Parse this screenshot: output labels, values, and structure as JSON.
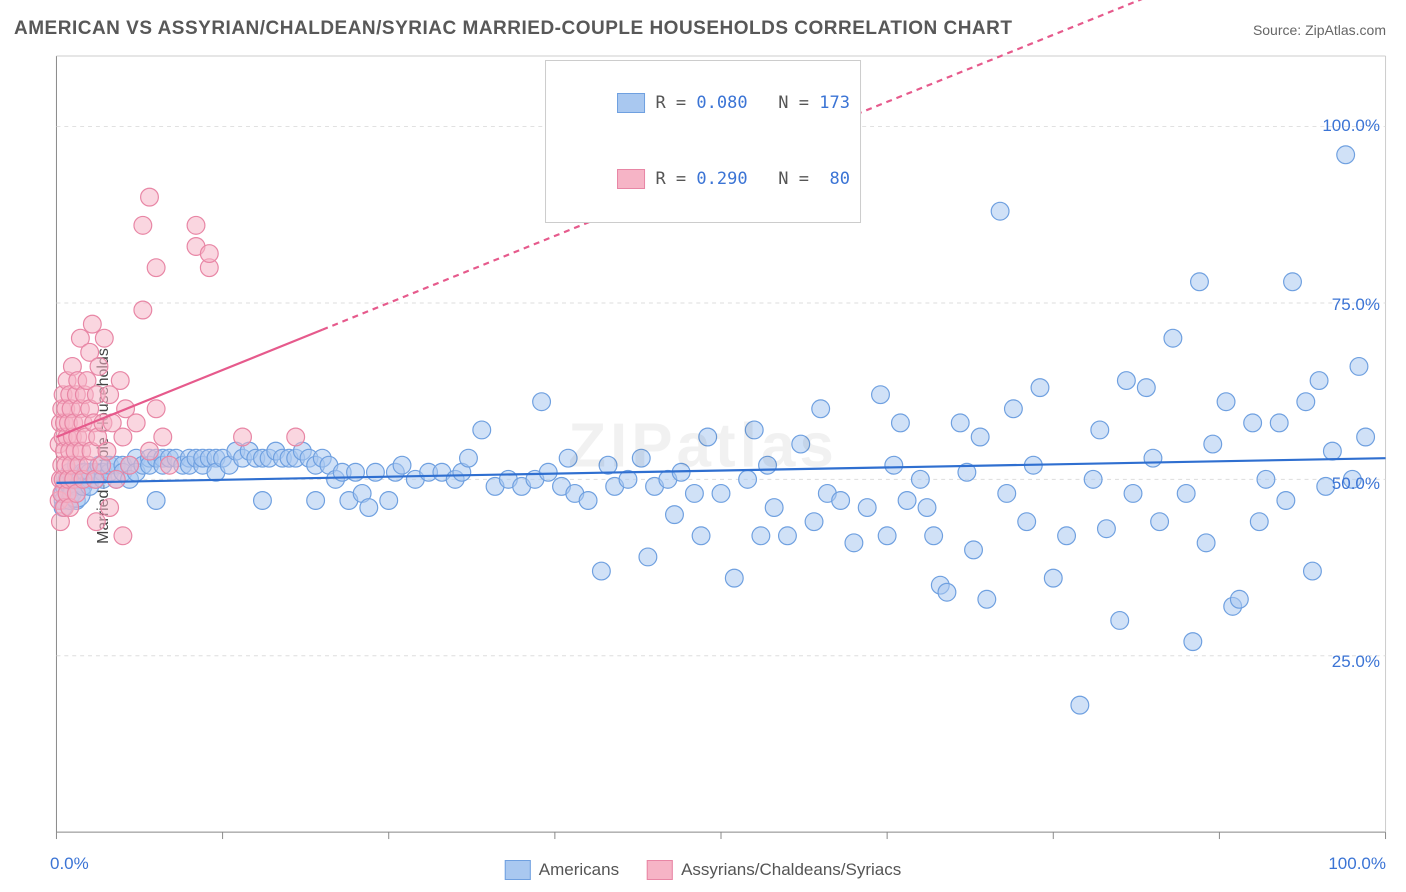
{
  "title": "AMERICAN VS ASSYRIAN/CHALDEAN/SYRIAC MARRIED-COUPLE HOUSEHOLDS CORRELATION CHART",
  "source_label": "Source: ZipAtlas.com",
  "watermark": "ZIPatlas",
  "ylabel": "Married-couple Households",
  "chart": {
    "type": "scatter",
    "xlim": [
      0,
      100
    ],
    "ylim": [
      0,
      110
    ],
    "xtick_positions": [
      0,
      12.5,
      25,
      37.5,
      50,
      62.5,
      75,
      87.5,
      100
    ],
    "ytick_positions": [
      25,
      50,
      75,
      100
    ],
    "ytick_labels": [
      "25.0%",
      "50.0%",
      "75.0%",
      "100.0%"
    ],
    "xaxis_min_label": "0.0%",
    "xaxis_max_label": "100.0%",
    "background_color": "#ffffff",
    "grid_color": "#dddddd",
    "grid_dash": "4 4",
    "ytick_label_color": "#3b74d5",
    "xtick_label_color": "#3b74d5",
    "ylabel_color": "#444444",
    "marker_radius": 9,
    "marker_radius_large": 14,
    "series": [
      {
        "name": "Americans",
        "fill_color": "#a9c8f0",
        "stroke_color": "#6fa0e0",
        "fill_opacity": 0.55,
        "line_color": "#2f6fd0",
        "line_width": 2.2,
        "line_dash": "none",
        "regression": {
          "y_at_x0": 49.5,
          "y_at_x100": 53.0
        },
        "points": [
          [
            0.5,
            48
          ],
          [
            0.5,
            50
          ],
          [
            0.5,
            47
          ],
          [
            0.5,
            46
          ],
          [
            0.6,
            49
          ],
          [
            0.8,
            48
          ],
          [
            0.8,
            50
          ],
          [
            1,
            49
          ],
          [
            1,
            51
          ],
          [
            1,
            47
          ],
          [
            1.2,
            50
          ],
          [
            1.2,
            48
          ],
          [
            1.5,
            50
          ],
          [
            1.5,
            49
          ],
          [
            1.5,
            47
          ],
          [
            1.5,
            52
          ],
          [
            1.5,
            48,
            14
          ],
          [
            1.8,
            50
          ],
          [
            2,
            50
          ],
          [
            2,
            51
          ],
          [
            2,
            49
          ],
          [
            2.2,
            51
          ],
          [
            2.5,
            50
          ],
          [
            2.5,
            51
          ],
          [
            2.5,
            49
          ],
          [
            3,
            51
          ],
          [
            3,
            50
          ],
          [
            3.2,
            52
          ],
          [
            3.5,
            51
          ],
          [
            3.5,
            50
          ],
          [
            4,
            51
          ],
          [
            4,
            52
          ],
          [
            4.5,
            52
          ],
          [
            4.5,
            50
          ],
          [
            5,
            52
          ],
          [
            5,
            51
          ],
          [
            5.5,
            52
          ],
          [
            5.5,
            50
          ],
          [
            6,
            53
          ],
          [
            6,
            51
          ],
          [
            6.5,
            52
          ],
          [
            7,
            53
          ],
          [
            7,
            52
          ],
          [
            7.5,
            53
          ],
          [
            7.5,
            47
          ],
          [
            8,
            53
          ],
          [
            8,
            52
          ],
          [
            8.5,
            53
          ],
          [
            9,
            53
          ],
          [
            9.5,
            52
          ],
          [
            10,
            53
          ],
          [
            10,
            52
          ],
          [
            10.5,
            53
          ],
          [
            11,
            52
          ],
          [
            11,
            53
          ],
          [
            11.5,
            53
          ],
          [
            12,
            53
          ],
          [
            12,
            51
          ],
          [
            12.5,
            53
          ],
          [
            13,
            52
          ],
          [
            13.5,
            54
          ],
          [
            14,
            53
          ],
          [
            14.5,
            54
          ],
          [
            15,
            53
          ],
          [
            15.5,
            53
          ],
          [
            15.5,
            47
          ],
          [
            16,
            53
          ],
          [
            16.5,
            54
          ],
          [
            17,
            53
          ],
          [
            17.5,
            53
          ],
          [
            18,
            53
          ],
          [
            18.5,
            54
          ],
          [
            19,
            53
          ],
          [
            19.5,
            47
          ],
          [
            19.5,
            52
          ],
          [
            20,
            53
          ],
          [
            20.5,
            52
          ],
          [
            21,
            50
          ],
          [
            21.5,
            51
          ],
          [
            22,
            47
          ],
          [
            22.5,
            51
          ],
          [
            23,
            48
          ],
          [
            23.5,
            46
          ],
          [
            24,
            51
          ],
          [
            25,
            47
          ],
          [
            25.5,
            51
          ],
          [
            26,
            52
          ],
          [
            27,
            50
          ],
          [
            28,
            51
          ],
          [
            29,
            51
          ],
          [
            30,
            50
          ],
          [
            30.5,
            51
          ],
          [
            31,
            53
          ],
          [
            32,
            57
          ],
          [
            33,
            49
          ],
          [
            34,
            50
          ],
          [
            35,
            49
          ],
          [
            36,
            50
          ],
          [
            36.5,
            61
          ],
          [
            37,
            51
          ],
          [
            38,
            49
          ],
          [
            38.5,
            53
          ],
          [
            39,
            48
          ],
          [
            40,
            47
          ],
          [
            41,
            37
          ],
          [
            41.5,
            52
          ],
          [
            42,
            49
          ],
          [
            43,
            50
          ],
          [
            44,
            53
          ],
          [
            44.5,
            39
          ],
          [
            45,
            49
          ],
          [
            46,
            50
          ],
          [
            46.5,
            45
          ],
          [
            47,
            51
          ],
          [
            48,
            48
          ],
          [
            48.5,
            42
          ],
          [
            49,
            56
          ],
          [
            50,
            48
          ],
          [
            51,
            36
          ],
          [
            52,
            50
          ],
          [
            52.5,
            57
          ],
          [
            53,
            42
          ],
          [
            53.5,
            52
          ],
          [
            54,
            46
          ],
          [
            55,
            42
          ],
          [
            56,
            55
          ],
          [
            57,
            44
          ],
          [
            57.5,
            60
          ],
          [
            58,
            48
          ],
          [
            59,
            47
          ],
          [
            60,
            41
          ],
          [
            61,
            46
          ],
          [
            62,
            62
          ],
          [
            62.5,
            42
          ],
          [
            63,
            52
          ],
          [
            63.5,
            58
          ],
          [
            64,
            47
          ],
          [
            65,
            50
          ],
          [
            65.5,
            46
          ],
          [
            66,
            42
          ],
          [
            66.5,
            35
          ],
          [
            67,
            34
          ],
          [
            68,
            58
          ],
          [
            68.5,
            51
          ],
          [
            69,
            40
          ],
          [
            69.5,
            56
          ],
          [
            70,
            33
          ],
          [
            71,
            88
          ],
          [
            71.5,
            48
          ],
          [
            72,
            60
          ],
          [
            73,
            44
          ],
          [
            73.5,
            52
          ],
          [
            74,
            63
          ],
          [
            75,
            36
          ],
          [
            76,
            42
          ],
          [
            77,
            18
          ],
          [
            78,
            50
          ],
          [
            78.5,
            57
          ],
          [
            79,
            43
          ],
          [
            80,
            30
          ],
          [
            80.5,
            64
          ],
          [
            81,
            48
          ],
          [
            82,
            63
          ],
          [
            82.5,
            53
          ],
          [
            83,
            44
          ],
          [
            84,
            70
          ],
          [
            85,
            48
          ],
          [
            85.5,
            27
          ],
          [
            86,
            78
          ],
          [
            86.5,
            41
          ],
          [
            87,
            55
          ],
          [
            88,
            61
          ],
          [
            88.5,
            32
          ],
          [
            89,
            33
          ],
          [
            90,
            58
          ],
          [
            90.5,
            44
          ],
          [
            91,
            50
          ],
          [
            92,
            58
          ],
          [
            92.5,
            47
          ],
          [
            93,
            78
          ],
          [
            94,
            61
          ],
          [
            94.5,
            37
          ],
          [
            95,
            64
          ],
          [
            95.5,
            49
          ],
          [
            96,
            54
          ],
          [
            97,
            96
          ],
          [
            97.5,
            50
          ],
          [
            98,
            66
          ],
          [
            98.5,
            56
          ]
        ]
      },
      {
        "name": "Assyrians/Chaldeans/Syriacs",
        "fill_color": "#f6b4c6",
        "stroke_color": "#e886a5",
        "fill_opacity": 0.55,
        "line_color": "#e65a8c",
        "line_width": 2.2,
        "line_dash": "6 5",
        "regression": {
          "y_at_x0": 56.0,
          "y_at_x100": 132.0
        },
        "regression_solid_until_x": 20,
        "points": [
          [
            0.2,
            47
          ],
          [
            0.2,
            55
          ],
          [
            0.3,
            50
          ],
          [
            0.3,
            58
          ],
          [
            0.3,
            44
          ],
          [
            0.4,
            52
          ],
          [
            0.4,
            48
          ],
          [
            0.4,
            60
          ],
          [
            0.5,
            56
          ],
          [
            0.5,
            50
          ],
          [
            0.5,
            62
          ],
          [
            0.6,
            54
          ],
          [
            0.6,
            46
          ],
          [
            0.6,
            58
          ],
          [
            0.7,
            52
          ],
          [
            0.7,
            60
          ],
          [
            0.8,
            48
          ],
          [
            0.8,
            56
          ],
          [
            0.8,
            64
          ],
          [
            0.9,
            50
          ],
          [
            0.9,
            58
          ],
          [
            1.0,
            54
          ],
          [
            1.0,
            62
          ],
          [
            1.0,
            46
          ],
          [
            1.1,
            52
          ],
          [
            1.1,
            60
          ],
          [
            1.2,
            56
          ],
          [
            1.2,
            66
          ],
          [
            1.3,
            50
          ],
          [
            1.3,
            58
          ],
          [
            1.4,
            54
          ],
          [
            1.5,
            62
          ],
          [
            1.5,
            48
          ],
          [
            1.6,
            56
          ],
          [
            1.6,
            64
          ],
          [
            1.7,
            52
          ],
          [
            1.8,
            60
          ],
          [
            1.8,
            70
          ],
          [
            1.9,
            54
          ],
          [
            2.0,
            58
          ],
          [
            2.0,
            50
          ],
          [
            2.1,
            62
          ],
          [
            2.2,
            56
          ],
          [
            2.3,
            64
          ],
          [
            2.4,
            52
          ],
          [
            2.5,
            60
          ],
          [
            2.5,
            68
          ],
          [
            2.6,
            54
          ],
          [
            2.7,
            72
          ],
          [
            2.8,
            58
          ],
          [
            2.9,
            50
          ],
          [
            3.0,
            62
          ],
          [
            3.0,
            44
          ],
          [
            3.1,
            56
          ],
          [
            3.2,
            66
          ],
          [
            3.4,
            52
          ],
          [
            3.5,
            58
          ],
          [
            3.6,
            70
          ],
          [
            3.8,
            54
          ],
          [
            4.0,
            62
          ],
          [
            4.0,
            46
          ],
          [
            4.2,
            58
          ],
          [
            4.5,
            50
          ],
          [
            4.8,
            64
          ],
          [
            5.0,
            56
          ],
          [
            5.0,
            42
          ],
          [
            5.2,
            60
          ],
          [
            5.5,
            52
          ],
          [
            6.0,
            58
          ],
          [
            6.5,
            74
          ],
          [
            6.5,
            86
          ],
          [
            7.0,
            54
          ],
          [
            7.0,
            90
          ],
          [
            7.5,
            60
          ],
          [
            7.5,
            80
          ],
          [
            8.0,
            56
          ],
          [
            8.5,
            52
          ],
          [
            10.5,
            86
          ],
          [
            10.5,
            83
          ],
          [
            11.5,
            80
          ],
          [
            11.5,
            82
          ],
          [
            14.0,
            56
          ],
          [
            18.0,
            56
          ]
        ]
      }
    ],
    "legend_top": {
      "rows": [
        {
          "swatch_fill": "#a9c8f0",
          "swatch_stroke": "#6fa0e0",
          "r_label": "R = ",
          "r_value": "0.080",
          "n_label": "N = ",
          "n_value": "173"
        },
        {
          "swatch_fill": "#f6b4c6",
          "swatch_stroke": "#e886a5",
          "r_label": "R = ",
          "r_value": "0.290",
          "n_label": "N = ",
          "n_value": " 80"
        }
      ]
    },
    "legend_bottom": {
      "items": [
        {
          "swatch_fill": "#a9c8f0",
          "swatch_stroke": "#6fa0e0",
          "label": "Americans"
        },
        {
          "swatch_fill": "#f6b4c6",
          "swatch_stroke": "#e886a5",
          "label": "Assyrians/Chaldeans/Syriacs"
        }
      ]
    }
  }
}
